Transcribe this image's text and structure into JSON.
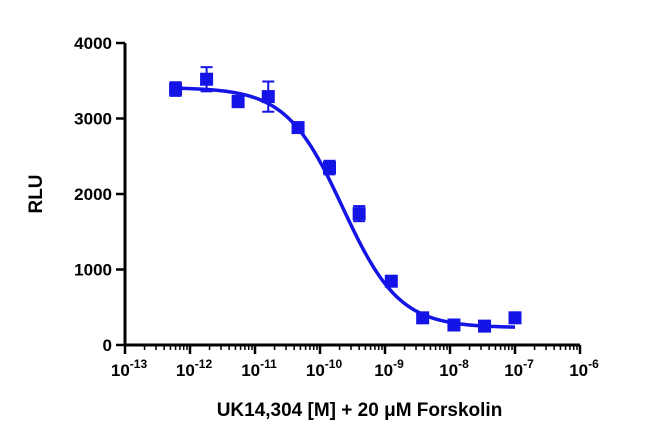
{
  "chart_data": {
    "type": "scatter",
    "xlabel": "UK14,304 [M] + 20 μM Forskolin",
    "ylabel": "RLU",
    "xscale": "log",
    "xlim": [
      1e-13,
      1e-06
    ],
    "ylim": [
      0,
      4000
    ],
    "x_ticks": [
      1e-13,
      1e-12,
      1e-11,
      1e-10,
      1e-09,
      1e-08,
      1e-07,
      1e-06
    ],
    "x_tick_labels": [
      {
        "base": "10",
        "exp": "-13"
      },
      {
        "base": "10",
        "exp": "-12"
      },
      {
        "base": "10",
        "exp": "-11"
      },
      {
        "base": "10",
        "exp": "-10"
      },
      {
        "base": "10",
        "exp": "-9"
      },
      {
        "base": "10",
        "exp": "-8"
      },
      {
        "base": "10",
        "exp": "-7"
      },
      {
        "base": "10",
        "exp": "-6"
      }
    ],
    "y_ticks": [
      0,
      1000,
      2000,
      3000,
      4000
    ],
    "y_tick_labels": [
      "0",
      "1000",
      "2000",
      "3000",
      "4000"
    ],
    "grid": false,
    "color": "#1414e6",
    "series": [
      {
        "points": [
          {
            "x": 6e-13,
            "y": 3390,
            "err": 90
          },
          {
            "x": 1.8e-12,
            "y": 3520,
            "err": 160
          },
          {
            "x": 5.5e-12,
            "y": 3225,
            "err": 75
          },
          {
            "x": 1.6e-11,
            "y": 3290,
            "err": 200
          },
          {
            "x": 4.6e-11,
            "y": 2880,
            "err": 40
          },
          {
            "x": 1.4e-10,
            "y": 2350,
            "err": 90
          },
          {
            "x": 4e-10,
            "y": 1740,
            "err": 100
          },
          {
            "x": 1.25e-09,
            "y": 845,
            "err": 40
          },
          {
            "x": 3.8e-09,
            "y": 360,
            "err": 30
          },
          {
            "x": 1.15e-08,
            "y": 265,
            "err": 20
          },
          {
            "x": 3.4e-08,
            "y": 250,
            "err": 20
          },
          {
            "x": 1e-07,
            "y": 360,
            "err": 20
          }
        ],
        "fit": {
          "model": "sigmoidal dose-response",
          "top": 3410,
          "bottom": 230,
          "log_ec50": -9.65,
          "hill_slope": -1.0
        }
      }
    ]
  }
}
